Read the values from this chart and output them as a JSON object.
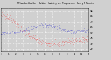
{
  "title": "Milwaukee Weather  Outdoor Humidity vs. Temperature  Every 5 Minutes",
  "background_color": "#d0d0d0",
  "plot_bg_color": "#d0d0d0",
  "grid_color": "#ffffff",
  "red_color": "#ff0000",
  "blue_color": "#0000cc",
  "right_yticks": [
    90,
    80,
    70,
    60,
    50,
    40,
    30,
    20
  ],
  "ylim": [
    15,
    95
  ],
  "xlim": [
    0,
    288
  ],
  "n_points": 289
}
